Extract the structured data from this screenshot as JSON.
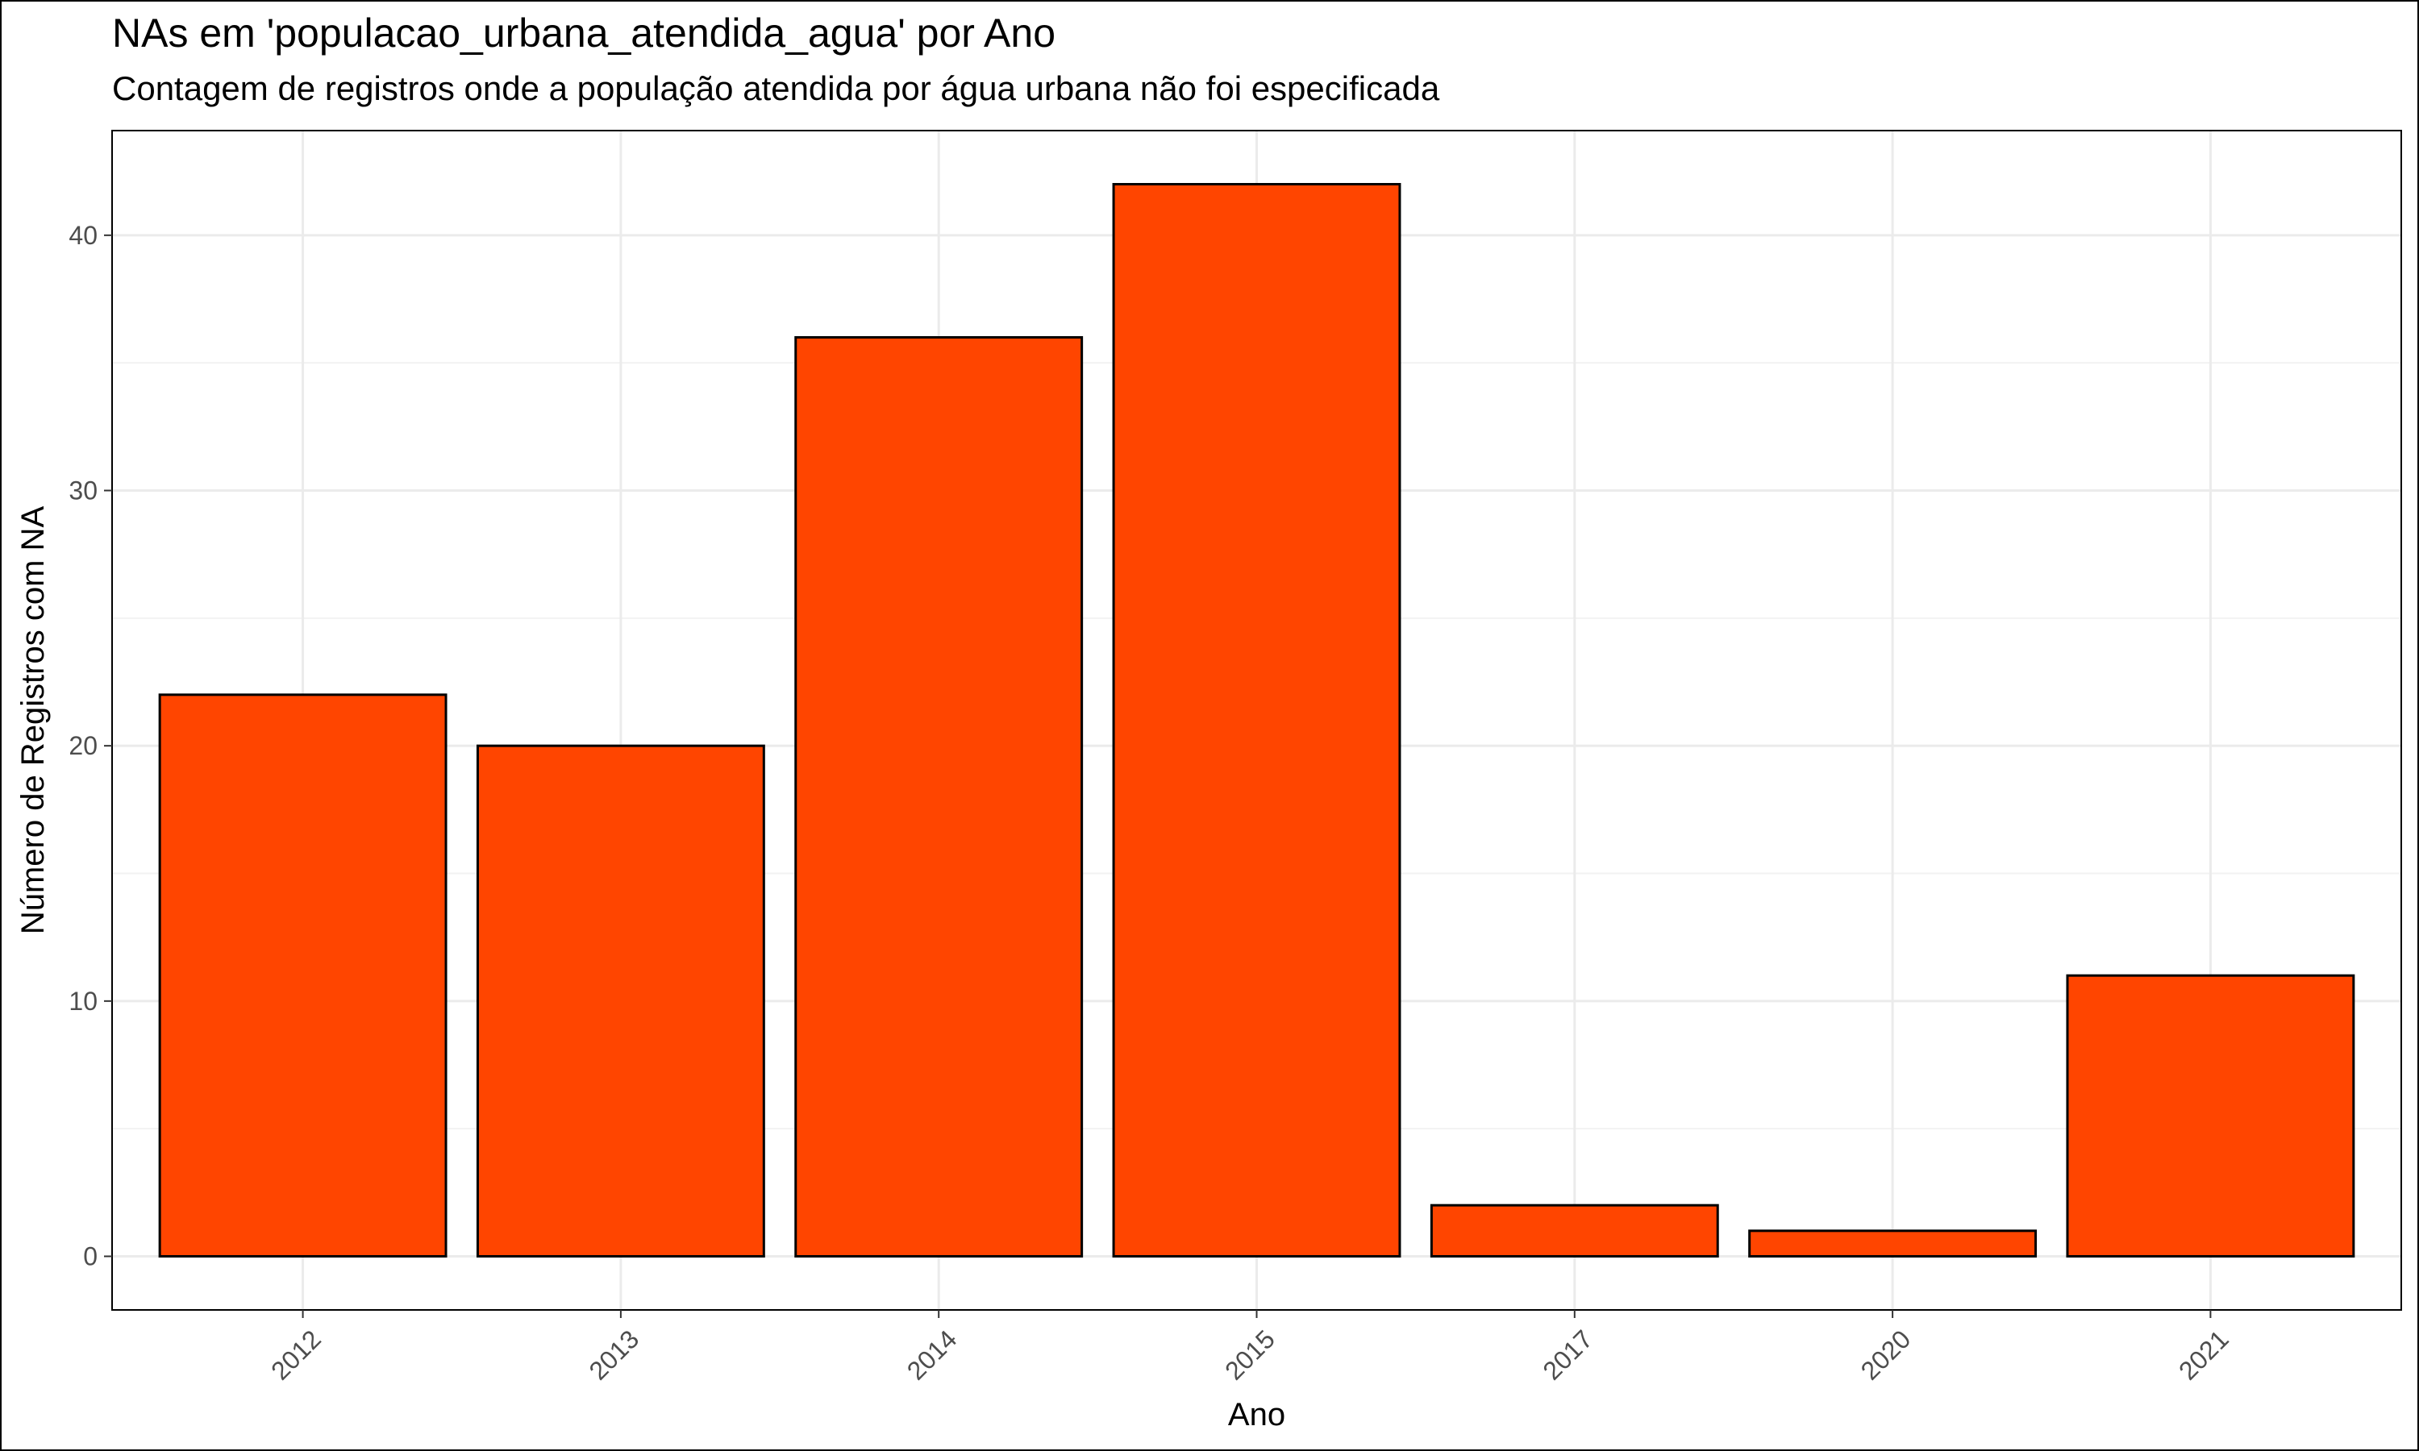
{
  "chart_data": {
    "type": "bar",
    "title": "NAs em 'populacao_urbana_atendida_agua' por Ano",
    "subtitle": "Contagem de registros onde a população atendida por água urbana não foi especificada",
    "xlabel": "Ano",
    "ylabel": "Número de Registros com NA",
    "categories": [
      "2012",
      "2013",
      "2014",
      "2015",
      "2017",
      "2020",
      "2021"
    ],
    "values": [
      22,
      20,
      36,
      42,
      2,
      1,
      11
    ],
    "ylim": [
      -2.1,
      44.1
    ],
    "yticks": [
      0,
      10,
      20,
      30,
      40
    ],
    "grid": true,
    "bar_color": "#FF4500",
    "bar_edge_color": "#000000",
    "x_tick_rotation": 45
  }
}
